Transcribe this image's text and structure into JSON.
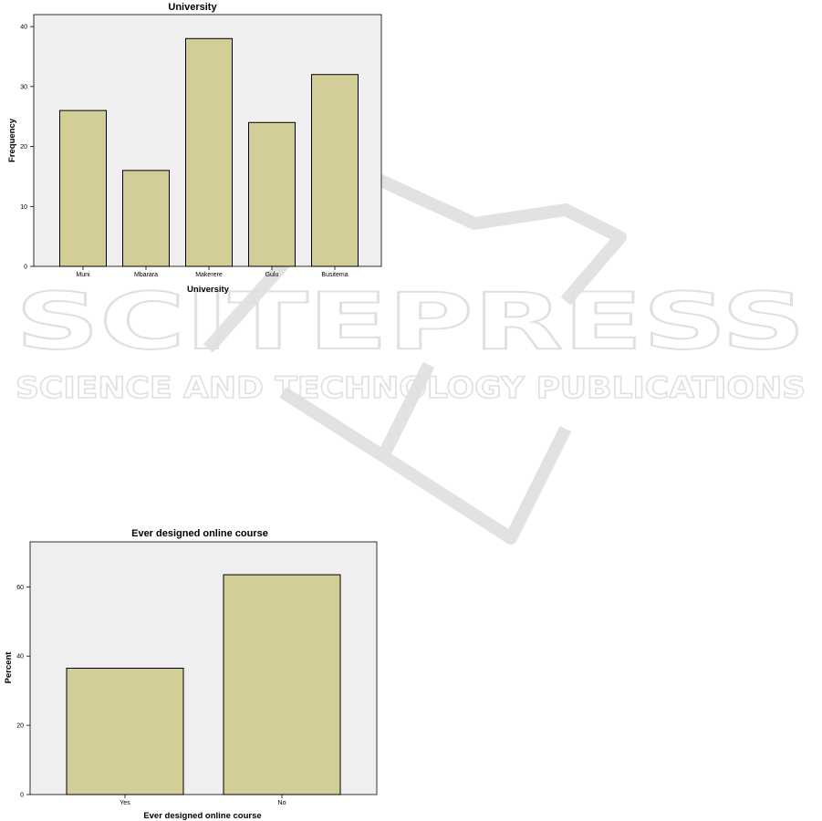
{
  "watermark": {
    "brand": "SCITEPRESS",
    "tagline": "SCIENCE AND TECHNOLOGY PUBLICATIONS"
  },
  "chart_data": [
    {
      "type": "bar",
      "title": "University",
      "xlabel": "University",
      "ylabel": "Frequency",
      "categories": [
        "Muni",
        "Mbarara",
        "Makerere",
        "Gulu",
        "Busitema"
      ],
      "values": [
        26,
        16,
        38,
        24,
        32
      ],
      "ylim": [
        0,
        42
      ],
      "yticks": [
        0,
        10,
        20,
        30,
        40
      ],
      "grid": false,
      "colors": {
        "bar": "#d3ce97",
        "plot_bg": "#efefef"
      }
    },
    {
      "type": "bar",
      "title": "Ever designed online course",
      "xlabel": "Ever designed online course",
      "ylabel": "Percent",
      "categories": [
        "Yes",
        "No"
      ],
      "values": [
        36.5,
        63.5
      ],
      "ylim": [
        0,
        73
      ],
      "yticks": [
        0,
        20,
        40,
        60
      ],
      "grid": false,
      "colors": {
        "bar": "#d3ce97",
        "plot_bg": "#efefef"
      }
    }
  ]
}
